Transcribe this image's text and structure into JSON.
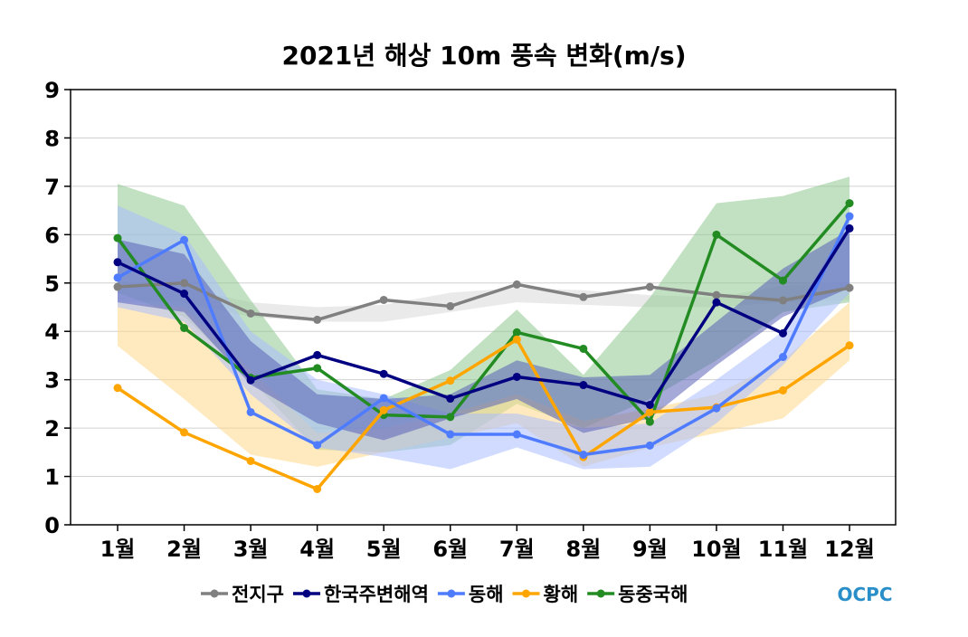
{
  "chart_data": {
    "type": "line",
    "title": "2021년 해상 10m 풍속 변화(m/s)",
    "xlabel": "",
    "ylabel": "",
    "categories": [
      "1월",
      "2월",
      "3월",
      "4월",
      "5월",
      "6월",
      "7월",
      "8월",
      "9월",
      "10월",
      "11월",
      "12월"
    ],
    "ylim": [
      0,
      9
    ],
    "yticks": [
      0,
      1,
      2,
      3,
      4,
      5,
      6,
      7,
      8,
      9
    ],
    "grid": true,
    "legend_position": "bottom",
    "series": [
      {
        "name": "전지구",
        "color": "#808080",
        "band_color": "#d8d8d8",
        "values": [
          4.92,
          5.0,
          4.37,
          4.24,
          4.65,
          4.52,
          4.97,
          4.71,
          4.92,
          4.75,
          4.64,
          4.9
        ],
        "band_low": [
          4.6,
          4.6,
          4.3,
          4.2,
          4.2,
          4.4,
          4.6,
          4.55,
          4.5,
          4.5,
          4.6,
          4.65
        ],
        "band_high": [
          4.95,
          4.9,
          4.6,
          4.5,
          4.55,
          4.8,
          4.9,
          4.85,
          4.75,
          4.7,
          4.95,
          5.0
        ]
      },
      {
        "name": "동중국해",
        "color": "#228b22",
        "band_color": "#8fc98f",
        "values": [
          5.93,
          4.07,
          3.04,
          3.24,
          2.27,
          2.23,
          3.98,
          3.64,
          2.13,
          6.0,
          5.05,
          6.65
        ],
        "band_low": [
          4.8,
          4.3,
          3.0,
          1.55,
          1.5,
          1.65,
          2.5,
          2.0,
          2.6,
          3.4,
          4.4,
          4.6
        ],
        "band_high": [
          7.05,
          6.6,
          4.65,
          2.8,
          2.6,
          3.2,
          4.45,
          3.1,
          4.7,
          6.65,
          6.8,
          7.2
        ]
      },
      {
        "name": "황해",
        "color": "#ffa500",
        "band_color": "#ffd98a",
        "values": [
          2.83,
          1.91,
          1.32,
          0.74,
          2.37,
          2.98,
          3.83,
          1.4,
          2.33,
          2.43,
          2.78,
          3.71
        ],
        "band_low": [
          3.7,
          2.6,
          1.45,
          1.2,
          1.5,
          1.8,
          2.1,
          1.2,
          1.6,
          1.9,
          2.2,
          3.4
        ],
        "band_high": [
          4.6,
          4.5,
          3.2,
          1.9,
          2.0,
          2.3,
          2.7,
          2.15,
          2.4,
          2.7,
          3.4,
          4.6
        ]
      },
      {
        "name": "동해",
        "color": "#4f7cff",
        "band_color": "#a9bdff",
        "values": [
          5.11,
          5.89,
          2.33,
          1.65,
          2.62,
          1.87,
          1.87,
          1.45,
          1.64,
          2.41,
          3.47,
          6.38
        ],
        "band_low": [
          4.5,
          4.2,
          2.7,
          1.6,
          1.4,
          1.15,
          1.6,
          1.15,
          1.2,
          2.1,
          3.3,
          4.8
        ],
        "band_high": [
          6.6,
          6.0,
          4.0,
          3.0,
          2.7,
          2.3,
          2.3,
          2.0,
          2.1,
          3.0,
          4.0,
          6.3
        ]
      },
      {
        "name": "한국주변해역",
        "color": "#000080",
        "band_color": "#5a62b8",
        "values": [
          5.43,
          4.78,
          2.99,
          3.51,
          3.12,
          2.61,
          3.06,
          2.89,
          2.48,
          4.6,
          3.96,
          6.13
        ],
        "band_low": [
          4.6,
          4.4,
          2.9,
          2.1,
          1.75,
          2.2,
          2.6,
          1.9,
          2.2,
          3.3,
          4.3,
          4.9
        ],
        "band_high": [
          5.9,
          5.6,
          3.8,
          2.7,
          2.6,
          2.7,
          3.4,
          3.05,
          3.1,
          4.2,
          5.3,
          6.1
        ]
      }
    ],
    "legend_order": [
      "전지구",
      "한국주변해역",
      "동해",
      "황해",
      "동중국해"
    ]
  },
  "logo": "OCPC"
}
